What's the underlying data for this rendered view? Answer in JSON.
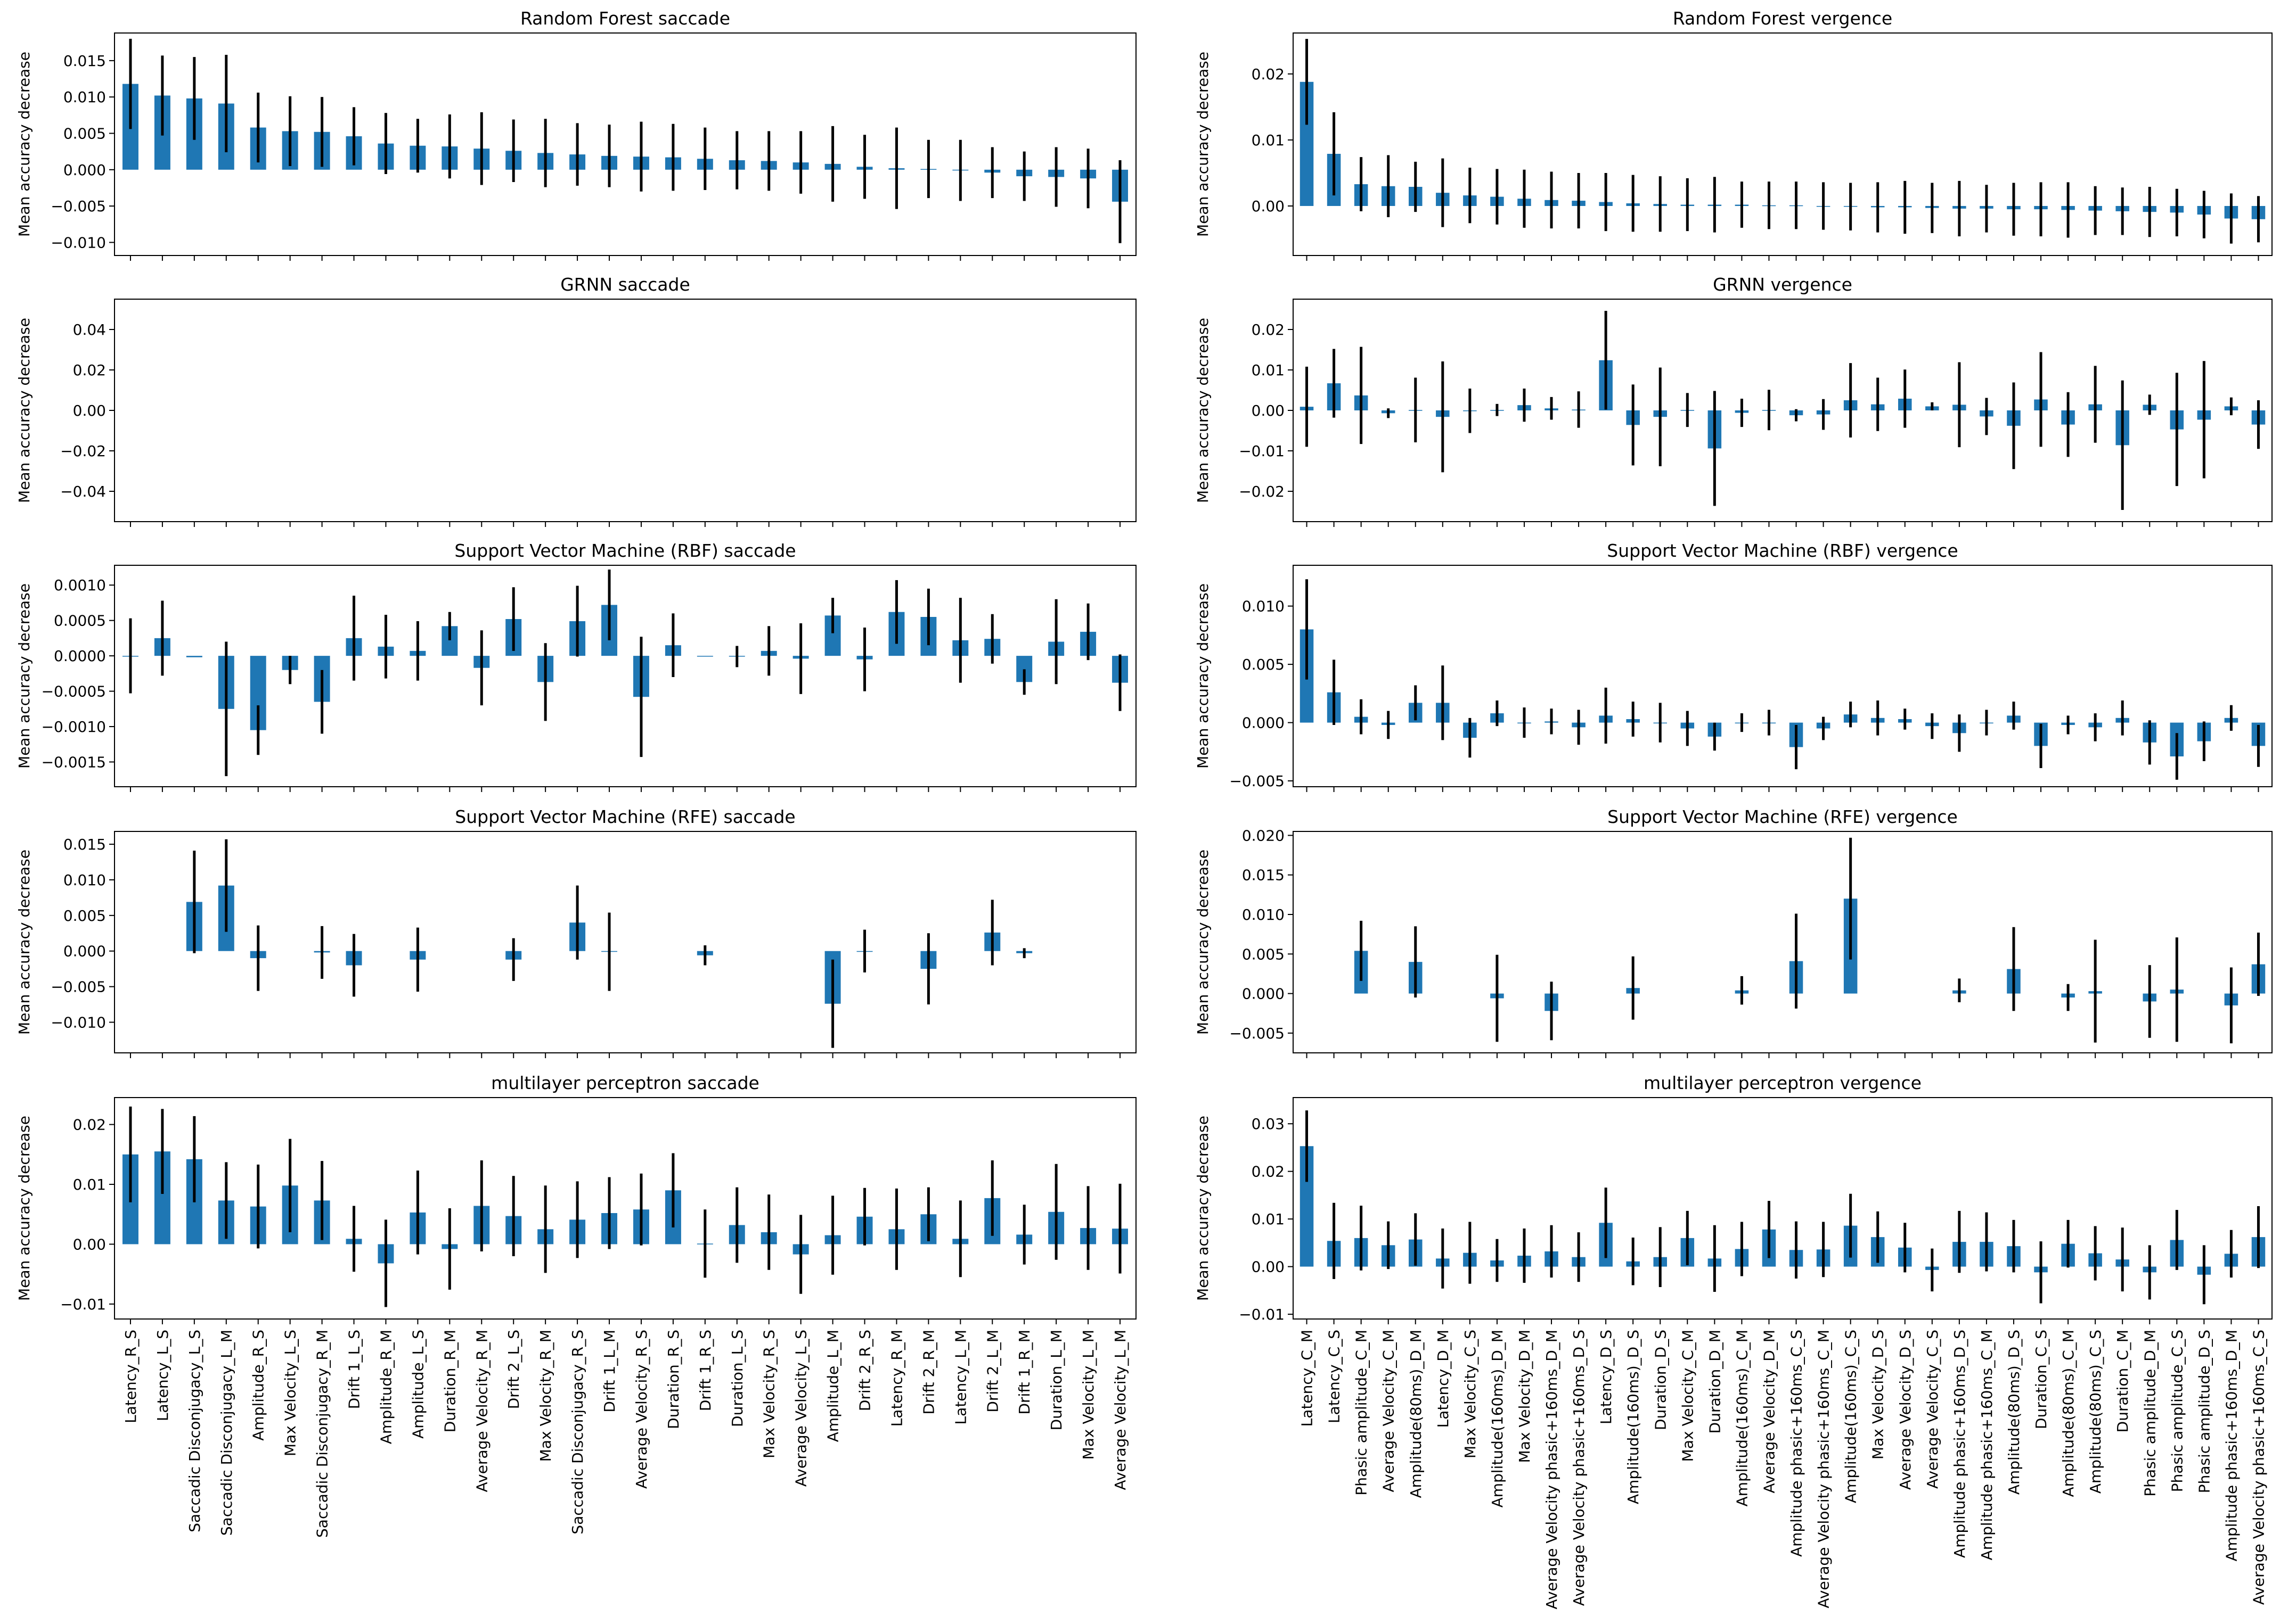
{
  "figure": {
    "bar_color": "#1f77b4",
    "error_color": "#000000",
    "ylabel": "Mean accuracy decrease",
    "saccade_features": [
      "Latency_R_S",
      "Latency_L_S",
      "Saccadic Disconjugacy_L_S",
      "Saccadic Disconjugacy_L_M",
      "Amplitude_R_S",
      "Max Velocity_L_S",
      "Saccadic Disconjugacy_R_M",
      "Drift 1_L_S",
      "Amplitude_R_M",
      "Amplitude_L_S",
      "Duration_R_M",
      "Average Velocity_R_M",
      "Drift 2_L_S",
      "Max Velocity_R_M",
      "Saccadic Disconjugacy_R_S",
      "Drift 1_L_M",
      "Average Velocity_R_S",
      "Duration_R_S",
      "Drift 1_R_S",
      "Duration_L_S",
      "Max Velocity_R_S",
      "Average Velocity_L_S",
      "Amplitude_L_M",
      "Drift 2_R_S",
      "Latency_R_M",
      "Drift 2_R_M",
      "Latency_L_M",
      "Drift 2_L_M",
      "Drift 1_R_M",
      "Duration_L_M",
      "Max Velocity_L_M",
      "Average Velocity_L_M"
    ],
    "vergence_features": [
      "Latency_C_M",
      "Latency_C_S",
      "Phasic amplitude_C_M",
      "Average Velocity_C_M",
      "Amplitude(80ms)_D_M",
      "Latency_D_M",
      "Max Velocity_C_S",
      "Amplitude(160ms)_D_M",
      "Max Velocity_D_M",
      "Average Velocity phasic+160ms_D_M",
      "Average Velocity phasic+160ms_D_S",
      "Latency_D_S",
      "Amplitude(160ms)_D_S",
      "Duration_D_S",
      "Max Velocity_C_M",
      "Duration_D_M",
      "Amplitude(160ms)_C_M",
      "Average Velocity_D_M",
      "Amplitude phasic+160ms_C_S",
      "Average Velocity phasic+160ms_C_M",
      "Amplitude(160ms)_C_S",
      "Max Velocity_D_S",
      "Average Velocity_D_S",
      "Average Velocity_C_S",
      "Amplitude phasic+160ms_D_S",
      "Amplitude phasic+160ms_C_M",
      "Amplitude(80ms)_D_S",
      "Duration_C_S",
      "Amplitude(80ms)_C_M",
      "Amplitude(80ms)_C_S",
      "Duration_C_M",
      "Phasic amplitude_D_M",
      "Phasic amplitude_C_S",
      "Phasic amplitude_D_S",
      "Amplitude phasic+160ms_D_M",
      "Average Velocity phasic+160ms_C_S"
    ]
  },
  "chart_data": [
    {
      "type": "bar",
      "title": "Random Forest saccade",
      "ylabel": "Mean accuracy decrease",
      "categories_ref": "saccade_features",
      "ylim": [
        -0.0118,
        0.0188
      ],
      "yticks": [
        -0.01,
        -0.005,
        0.0,
        0.005,
        0.01,
        0.015
      ],
      "ytick_labels": [
        "−0.010",
        "−0.005",
        "0.000",
        "0.005",
        "0.010",
        "0.015"
      ],
      "values": [
        0.0118,
        0.0102,
        0.0098,
        0.0091,
        0.0058,
        0.0053,
        0.0052,
        0.0046,
        0.0036,
        0.0033,
        0.0032,
        0.0029,
        0.0026,
        0.0023,
        0.0021,
        0.0019,
        0.0018,
        0.0017,
        0.0015,
        0.0013,
        0.0012,
        0.001,
        0.0008,
        0.0004,
        0.0002,
        0.0001,
        -0.0001,
        -0.0004,
        -0.0009,
        -0.001,
        -0.0012,
        -0.0044
      ],
      "errors": [
        0.0062,
        0.0055,
        0.0057,
        0.0067,
        0.0048,
        0.0048,
        0.0048,
        0.004,
        0.0042,
        0.0037,
        0.0044,
        0.005,
        0.0043,
        0.0047,
        0.0043,
        0.0043,
        0.0048,
        0.0046,
        0.0043,
        0.004,
        0.0041,
        0.0043,
        0.0052,
        0.0044,
        0.0056,
        0.004,
        0.0042,
        0.0035,
        0.0034,
        0.0041,
        0.0041,
        0.0057
      ]
    },
    {
      "type": "bar",
      "title": "Random Forest vergence",
      "ylabel": "Mean accuracy decrease",
      "categories_ref": "vergence_features",
      "ylim": [
        -0.0075,
        0.0262
      ],
      "yticks": [
        0.0,
        0.01,
        0.02
      ],
      "ytick_labels": [
        "0.00",
        "0.01",
        "0.02"
      ],
      "values": [
        0.0188,
        0.0079,
        0.0033,
        0.003,
        0.0029,
        0.002,
        0.0016,
        0.0014,
        0.0011,
        0.0009,
        0.0008,
        0.0006,
        0.0004,
        0.0003,
        0.0002,
        0.0002,
        0.0002,
        0.0001,
        0.0001,
        0.0,
        -0.0001,
        -0.0002,
        -0.0002,
        -0.0003,
        -0.0004,
        -0.0004,
        -0.0005,
        -0.0005,
        -0.0006,
        -0.0007,
        -0.0008,
        -0.0009,
        -0.001,
        -0.0013,
        -0.0019,
        -0.002
      ],
      "errors": [
        0.0065,
        0.0063,
        0.0041,
        0.0047,
        0.0038,
        0.0052,
        0.0042,
        0.0042,
        0.0044,
        0.0043,
        0.0042,
        0.0044,
        0.0043,
        0.0042,
        0.004,
        0.0042,
        0.0035,
        0.0036,
        0.0036,
        0.0036,
        0.0036,
        0.0038,
        0.004,
        0.0038,
        0.0042,
        0.0036,
        0.004,
        0.0041,
        0.0042,
        0.0037,
        0.0036,
        0.0038,
        0.0036,
        0.0036,
        0.0038,
        0.0035
      ]
    },
    {
      "type": "bar",
      "title": "GRNN saccade",
      "ylabel": "Mean accuracy decrease",
      "categories_ref": "saccade_features",
      "ylim": [
        -0.055,
        0.055
      ],
      "yticks": [
        -0.04,
        -0.02,
        0.0,
        0.02,
        0.04
      ],
      "ytick_labels": [
        "−0.04",
        "−0.02",
        "0.00",
        "0.02",
        "0.04"
      ],
      "values": [
        0,
        0,
        0,
        0,
        0,
        0,
        0,
        0,
        0,
        0,
        0,
        0,
        0,
        0,
        0,
        0,
        0,
        0,
        0,
        0,
        0,
        0,
        0,
        0,
        0,
        0,
        0,
        0,
        0,
        0,
        0,
        0
      ],
      "errors": [
        0,
        0,
        0,
        0,
        0,
        0,
        0,
        0,
        0,
        0,
        0,
        0,
        0,
        0,
        0,
        0,
        0,
        0,
        0,
        0,
        0,
        0,
        0,
        0,
        0,
        0,
        0,
        0,
        0,
        0,
        0,
        0
      ],
      "show_bars": false
    },
    {
      "type": "bar",
      "title": "GRNN vergence",
      "ylabel": "Mean accuracy decrease",
      "categories_ref": "vergence_features",
      "ylim": [
        -0.0275,
        0.0275
      ],
      "yticks": [
        -0.02,
        -0.01,
        0.0,
        0.01,
        0.02
      ],
      "ytick_labels": [
        "−0.02",
        "−0.01",
        "0.00",
        "0.01",
        "0.02"
      ],
      "values": [
        0.0009,
        0.0067,
        0.0037,
        -0.0007,
        0.0001,
        -0.0016,
        -0.0001,
        0.0001,
        0.0013,
        0.0005,
        0.0002,
        0.0124,
        -0.0036,
        -0.0016,
        0.0001,
        -0.0094,
        -0.0006,
        0.0001,
        -0.0012,
        -0.001,
        0.0025,
        0.0015,
        0.0029,
        0.001,
        0.0014,
        -0.0015,
        -0.0038,
        0.0027,
        -0.0035,
        0.0015,
        -0.0086,
        0.0014,
        -0.0047,
        -0.0023,
        0.001,
        -0.0035
      ],
      "errors": [
        0.0099,
        0.0085,
        0.012,
        0.0012,
        0.008,
        0.0137,
        0.0055,
        0.0015,
        0.0041,
        0.0028,
        0.0045,
        0.0122,
        0.01,
        0.0122,
        0.0042,
        0.0142,
        0.0035,
        0.005,
        0.0015,
        0.0038,
        0.0092,
        0.0066,
        0.0072,
        0.001,
        0.0105,
        0.0046,
        0.0107,
        0.0117,
        0.008,
        0.0095,
        0.016,
        0.0025,
        0.014,
        0.0145,
        0.0022,
        0.006
      ]
    },
    {
      "type": "bar",
      "title": "Support Vector Machine (RBF) saccade",
      "ylabel": "Mean accuracy decrease",
      "categories_ref": "saccade_features",
      "ylim": [
        -0.00185,
        0.00128
      ],
      "yticks": [
        -0.0015,
        -0.001,
        -0.0005,
        0.0,
        0.0005,
        0.001
      ],
      "ytick_labels": [
        "−0.0015",
        "−0.0010",
        "−0.0005",
        "0.0000",
        "0.0005",
        "0.0010"
      ],
      "values": [
        0.0,
        0.00025,
        -2e-05,
        -0.00075,
        -0.00105,
        -0.0002,
        -0.00065,
        0.00025,
        0.00013,
        7e-05,
        0.00042,
        -0.00017,
        0.00052,
        -0.00037,
        0.00049,
        0.00072,
        -0.00058,
        0.00015,
        0.0,
        -1e-05,
        7e-05,
        -4e-05,
        0.00057,
        -5e-05,
        0.00062,
        0.00055,
        0.00022,
        0.00024,
        -0.00037,
        0.0002,
        0.00034,
        -0.00038
      ],
      "errors": [
        0.00053,
        0.00053,
        0.0,
        0.00095,
        0.00035,
        0.0002,
        0.00045,
        0.0006,
        0.00045,
        0.00042,
        0.0002,
        0.00053,
        0.00045,
        0.00055,
        0.0005,
        0.0005,
        0.00085,
        0.00045,
        0.0,
        0.00015,
        0.00035,
        0.0005,
        0.00025,
        0.00045,
        0.00045,
        0.0004,
        0.0006,
        0.00035,
        0.00018,
        0.0006,
        0.0004,
        0.0004
      ]
    },
    {
      "type": "bar",
      "title": "Support Vector Machine (RBF) vergence",
      "ylabel": "Mean accuracy decrease",
      "categories_ref": "vergence_features",
      "ylim": [
        -0.0055,
        0.0135
      ],
      "yticks": [
        -0.005,
        0.0,
        0.005,
        0.01
      ],
      "ytick_labels": [
        "−0.005",
        "0.000",
        "0.005",
        "0.010"
      ],
      "values": [
        0.008,
        0.0026,
        0.0005,
        -0.0002,
        0.0017,
        0.0017,
        -0.0013,
        0.0008,
        0.0,
        0.0001,
        -0.0004,
        0.0006,
        0.0003,
        0.0,
        -0.0005,
        -0.0012,
        0.0,
        0.0,
        -0.0021,
        -0.0005,
        0.0007,
        0.0004,
        0.0003,
        -0.0003,
        -0.0009,
        0.0,
        0.0006,
        -0.002,
        -0.0002,
        -0.0004,
        0.0004,
        -0.0017,
        -0.0029,
        -0.0016,
        0.0004,
        -0.002
      ],
      "errors": [
        0.0043,
        0.0028,
        0.0015,
        0.0012,
        0.0015,
        0.0032,
        0.0017,
        0.0011,
        0.0013,
        0.0011,
        0.0015,
        0.0024,
        0.0015,
        0.0017,
        0.0015,
        0.0012,
        0.0008,
        0.0011,
        0.0019,
        0.001,
        0.0011,
        0.0015,
        0.0009,
        0.0011,
        0.0016,
        0.0011,
        0.0012,
        0.0019,
        0.0008,
        0.0012,
        0.0015,
        0.0019,
        0.002,
        0.0017,
        0.0011,
        0.0018
      ]
    },
    {
      "type": "bar",
      "title": "Support Vector Machine (RFE) saccade",
      "ylabel": "Mean accuracy decrease",
      "categories_ref": "saccade_features",
      "ylim": [
        -0.0143,
        0.0168
      ],
      "yticks": [
        -0.01,
        -0.005,
        0.0,
        0.005,
        0.01,
        0.015
      ],
      "ytick_labels": [
        "−0.010",
        "−0.005",
        "0.000",
        "0.005",
        "0.010",
        "0.015"
      ],
      "values": [
        null,
        null,
        0.0069,
        0.0092,
        -0.001,
        null,
        -0.0002,
        -0.002,
        null,
        -0.0012,
        null,
        null,
        -0.0012,
        null,
        0.004,
        -0.0001,
        null,
        null,
        -0.0006,
        null,
        null,
        null,
        -0.0074,
        0.0,
        null,
        -0.0025,
        null,
        0.0026,
        -0.0003,
        null,
        null,
        null
      ],
      "errors": [
        0,
        0,
        0.0072,
        0.0065,
        0.0046,
        0,
        0.0037,
        0.0044,
        0,
        0.0045,
        0,
        0,
        0.003,
        0,
        0.0052,
        0.0055,
        0,
        0,
        0.0014,
        0,
        0,
        0,
        0.0062,
        0.003,
        0,
        0.005,
        0,
        0.0046,
        0.0007,
        0,
        0,
        0
      ]
    },
    {
      "type": "bar",
      "title": "Support Vector Machine (RFE) vergence",
      "ylabel": "Mean accuracy decrease",
      "categories_ref": "vergence_features",
      "ylim": [
        -0.0075,
        0.0205
      ],
      "yticks": [
        -0.005,
        0.0,
        0.005,
        0.01,
        0.015,
        0.02
      ],
      "ytick_labels": [
        "−0.005",
        "0.000",
        "0.005",
        "0.010",
        "0.015",
        "0.020"
      ],
      "values": [
        null,
        null,
        0.0054,
        null,
        0.004,
        null,
        null,
        -0.0006,
        null,
        -0.0022,
        null,
        null,
        0.0007,
        null,
        null,
        null,
        0.0004,
        null,
        0.0041,
        null,
        0.012,
        null,
        null,
        null,
        0.0004,
        null,
        0.0031,
        null,
        -0.0005,
        0.0003,
        null,
        -0.001,
        0.0005,
        null,
        -0.0015,
        0.0037
      ],
      "errors": [
        0,
        0,
        0.0038,
        0,
        0.0045,
        0,
        0,
        0.0055,
        0,
        0.0037,
        0,
        0,
        0.004,
        0,
        0,
        0,
        0.0018,
        0,
        0.006,
        0,
        0.0077,
        0,
        0,
        0,
        0.0015,
        0,
        0.0053,
        0,
        0.0017,
        0.0065,
        0,
        0.0046,
        0.0066,
        0,
        0.0048,
        0.004
      ]
    },
    {
      "type": "bar",
      "title": "multilayer perceptron saccade",
      "ylabel": "Mean accuracy decrease",
      "categories_ref": "saccade_features",
      "ylim": [
        -0.0125,
        0.0245
      ],
      "yticks": [
        -0.01,
        0.0,
        0.01,
        0.02
      ],
      "ytick_labels": [
        "−0.01",
        "0.00",
        "0.01",
        "0.02"
      ],
      "values": [
        0.015,
        0.0155,
        0.0142,
        0.0073,
        0.0063,
        0.0098,
        0.0073,
        0.0009,
        -0.0032,
        0.0053,
        -0.0008,
        0.0064,
        0.0047,
        0.0025,
        0.0041,
        0.0052,
        0.0058,
        0.009,
        0.0001,
        0.0032,
        0.002,
        -0.0017,
        0.0015,
        0.0046,
        0.0025,
        0.005,
        0.0009,
        0.0077,
        0.0016,
        0.0054,
        0.0027,
        0.0026
      ],
      "errors": [
        0.008,
        0.0071,
        0.0072,
        0.0064,
        0.007,
        0.0078,
        0.0066,
        0.0055,
        0.0073,
        0.007,
        0.0068,
        0.0076,
        0.0067,
        0.0073,
        0.0064,
        0.006,
        0.006,
        0.0062,
        0.0057,
        0.0063,
        0.0063,
        0.0066,
        0.0066,
        0.0048,
        0.0068,
        0.0045,
        0.0064,
        0.0063,
        0.005,
        0.008,
        0.007,
        0.0075
      ]
    },
    {
      "type": "bar",
      "title": "multilayer perceptron vergence",
      "ylabel": "Mean accuracy decrease",
      "categories_ref": "vergence_features",
      "ylim": [
        -0.011,
        0.0355
      ],
      "yticks": [
        -0.01,
        0.0,
        0.01,
        0.02,
        0.03
      ],
      "ytick_labels": [
        "−0.01",
        "0.00",
        "0.01",
        "0.02",
        "0.03"
      ],
      "values": [
        0.0253,
        0.0054,
        0.006,
        0.0045,
        0.0057,
        0.0017,
        0.0029,
        0.0013,
        0.0023,
        0.0032,
        0.002,
        0.0092,
        0.0011,
        0.002,
        0.006,
        0.0017,
        0.0037,
        0.0078,
        0.0035,
        0.0036,
        0.0086,
        0.0062,
        0.004,
        -0.0007,
        0.0052,
        0.0052,
        0.0043,
        -0.0012,
        0.0048,
        0.0028,
        0.0015,
        -0.0012,
        0.0056,
        -0.0017,
        0.0027,
        0.0062
      ],
      "errors": [
        0.0075,
        0.008,
        0.0068,
        0.005,
        0.0055,
        0.0063,
        0.0065,
        0.0045,
        0.0057,
        0.0055,
        0.0052,
        0.0074,
        0.005,
        0.0063,
        0.0057,
        0.007,
        0.0057,
        0.006,
        0.006,
        0.0058,
        0.0067,
        0.0054,
        0.0052,
        0.0045,
        0.0065,
        0.0062,
        0.0055,
        0.0065,
        0.005,
        0.0057,
        0.0067,
        0.0057,
        0.0063,
        0.0062,
        0.005,
        0.0065
      ]
    }
  ]
}
